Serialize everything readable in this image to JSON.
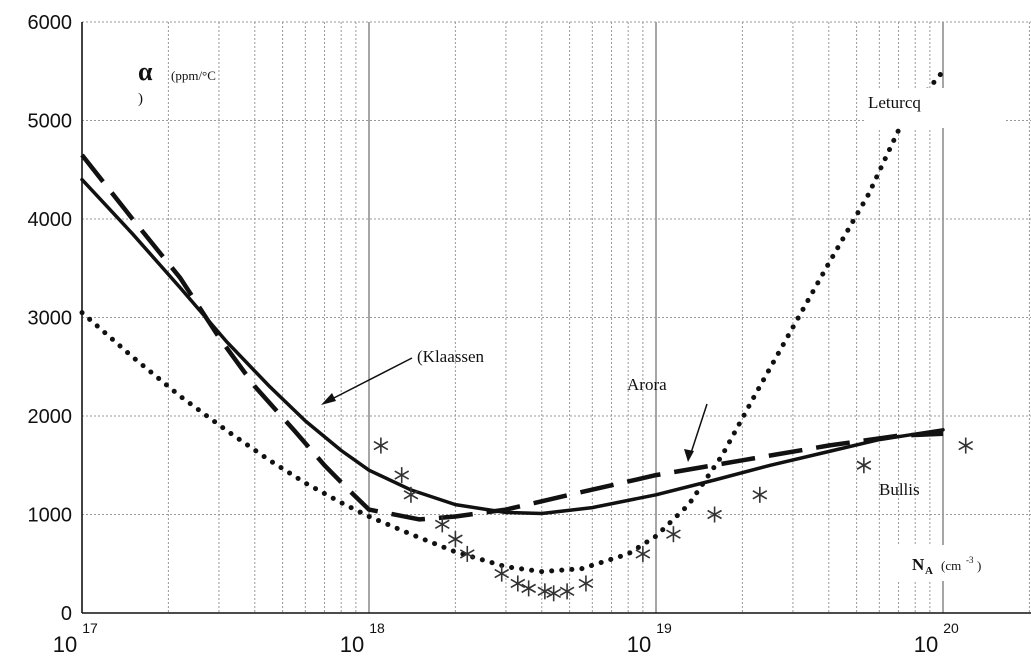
{
  "chart_data": {
    "type": "line",
    "x_scale": "log",
    "xlim": [
      1e+17,
      1e+20
    ],
    "ylim": [
      0,
      6000
    ],
    "grid": true,
    "y_ticks": [
      "0",
      "1000",
      "2000",
      "3000",
      "4000",
      "5000",
      "6000"
    ],
    "x_ticks": [
      {
        "base": "10",
        "exp": "17"
      },
      {
        "base": "10",
        "exp": "18"
      },
      {
        "base": "10",
        "exp": "19"
      },
      {
        "base": "10",
        "exp": "20"
      }
    ],
    "ylabel": {
      "symbol": "α",
      "unit": "(ppm/°C",
      "unit_close": ")"
    },
    "xlabel": {
      "symbol": "N",
      "sub": "A",
      "unit_open": "(cm",
      "unit_exp": "-3",
      "unit_close": ")"
    },
    "series": [
      {
        "name": "(Klaassen",
        "style": "solid",
        "x": [
          1e+17,
          1.5e+17,
          2.2e+17,
          3.2e+17,
          4.5e+17,
          6e+17,
          8e+17,
          1e+18,
          1.4e+18,
          2e+18,
          3e+18,
          4e+18,
          6e+18,
          1e+19,
          1.6e+19,
          2.5e+19,
          4e+19,
          6e+19,
          1e+20
        ],
        "y": [
          4400,
          3850,
          3300,
          2750,
          2300,
          1950,
          1650,
          1450,
          1250,
          1100,
          1020,
          1010,
          1070,
          1200,
          1350,
          1500,
          1640,
          1760,
          1860
        ]
      },
      {
        "name": "Arora",
        "style": "dashed",
        "x": [
          1e+17,
          1.5e+17,
          2.2e+17,
          3e+17,
          4e+17,
          5.5e+17,
          7e+17,
          8.5e+17,
          1e+18,
          1.5e+18,
          2e+18,
          3e+18,
          5e+18,
          1e+19,
          2e+19,
          4e+19,
          7e+19,
          1e+20
        ],
        "y": [
          4650,
          4000,
          3400,
          2800,
          2300,
          1850,
          1500,
          1250,
          1050,
          950,
          980,
          1050,
          1200,
          1400,
          1550,
          1700,
          1800,
          1820
        ]
      },
      {
        "name": "Leturcq",
        "style": "dotted",
        "x": [
          1e+17,
          1.5e+17,
          2.2e+17,
          3.2e+17,
          4.5e+17,
          6e+17,
          8e+17,
          1e+18,
          1.4e+18,
          2e+18,
          3e+18,
          4e+18,
          5.5e+18,
          8e+18,
          1e+19,
          1.3e+19,
          1.7e+19,
          2.2e+19,
          3e+19,
          4e+19,
          5.5e+19,
          7e+19,
          8.5e+19,
          1e+20
        ],
        "y": [
          3050,
          2600,
          2200,
          1850,
          1550,
          1320,
          1120,
          980,
          800,
          620,
          470,
          420,
          450,
          600,
          780,
          1100,
          1600,
          2200,
          2900,
          3550,
          4250,
          4900,
          5250,
          5500
        ]
      },
      {
        "name": "Bullis",
        "style": "markers",
        "x": [
          1.1e+18,
          1.3e+18,
          1.4e+18,
          1.8e+18,
          2e+18,
          2.2e+18,
          2.9e+18,
          3.3e+18,
          3.6e+18,
          4.1e+18,
          4.4e+18,
          4.9e+18,
          5.7e+18,
          9e+18,
          1.15e+19,
          1.6e+19,
          2.3e+19,
          5.3e+19,
          1.2e+20
        ],
        "y": [
          1700,
          1400,
          1200,
          900,
          750,
          600,
          400,
          300,
          250,
          220,
          200,
          220,
          300,
          600,
          800,
          1000,
          1200,
          1500,
          1700
        ]
      }
    ]
  }
}
